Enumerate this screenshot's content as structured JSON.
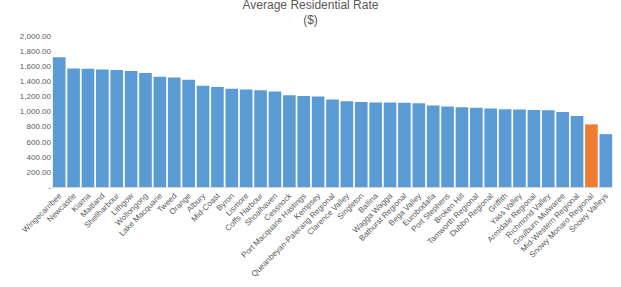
{
  "chart_data": {
    "type": "bar",
    "title": "Average Residential Rate",
    "subtitle": "($)",
    "categories": [
      "Wingecarribee",
      "Newcastle",
      "Kiama",
      "Maitland",
      "Shellharbour",
      "Lithgow",
      "Wollongong",
      "Lake Macquarie",
      "Tweed",
      "Orange",
      "Albury",
      "Mid-Coast",
      "Byron",
      "Lismore",
      "Coffs Harbour",
      "Shoalhaven",
      "Cessnock",
      "Port Macquarie Hastings",
      "Kempsey",
      "Queanbeyan-Palerang Regional",
      "Clarence Valley",
      "Singleton",
      "Ballina",
      "Wagga Wagga",
      "Bathurst Regional",
      "Bega Valley",
      "Eurobodalla",
      "Port Stephens",
      "Broken Hill",
      "Tamworth Regional",
      "Dubbo Regional",
      "Griffith",
      "Yass Valley",
      "Armidale Regional",
      "Richmond Valley",
      "Goulburn Mulwaree",
      "Mid-Western Regional",
      "Snowy Monaro Regional",
      "Snowy Valleys"
    ],
    "values": [
      1720,
      1570,
      1565,
      1555,
      1550,
      1535,
      1510,
      1460,
      1450,
      1420,
      1340,
      1325,
      1300,
      1290,
      1280,
      1265,
      1215,
      1205,
      1200,
      1160,
      1135,
      1125,
      1120,
      1120,
      1115,
      1110,
      1080,
      1065,
      1055,
      1050,
      1040,
      1030,
      1025,
      1020,
      1015,
      995,
      940,
      830,
      700
    ],
    "colors": [
      "#5b9bd5",
      "#5b9bd5",
      "#5b9bd5",
      "#5b9bd5",
      "#5b9bd5",
      "#5b9bd5",
      "#5b9bd5",
      "#5b9bd5",
      "#5b9bd5",
      "#5b9bd5",
      "#5b9bd5",
      "#5b9bd5",
      "#5b9bd5",
      "#5b9bd5",
      "#5b9bd5",
      "#5b9bd5",
      "#5b9bd5",
      "#5b9bd5",
      "#5b9bd5",
      "#5b9bd5",
      "#5b9bd5",
      "#5b9bd5",
      "#5b9bd5",
      "#5b9bd5",
      "#5b9bd5",
      "#5b9bd5",
      "#5b9bd5",
      "#5b9bd5",
      "#5b9bd5",
      "#5b9bd5",
      "#5b9bd5",
      "#5b9bd5",
      "#5b9bd5",
      "#5b9bd5",
      "#5b9bd5",
      "#5b9bd5",
      "#5b9bd5",
      "#ed7d31",
      "#5b9bd5"
    ],
    "ylim": [
      0,
      2000
    ],
    "yticks": [
      {
        "value": 0,
        "label": "-"
      },
      {
        "value": 200,
        "label": "200.00"
      },
      {
        "value": 400,
        "label": "400.00"
      },
      {
        "value": 600,
        "label": "600.00"
      },
      {
        "value": 800,
        "label": "800.00"
      },
      {
        "value": 1000,
        "label": "1,000.00"
      },
      {
        "value": 1200,
        "label": "1,200.00"
      },
      {
        "value": 1400,
        "label": "1,400.00"
      },
      {
        "value": 1600,
        "label": "1,600.00"
      },
      {
        "value": 1800,
        "label": "1,800.00"
      },
      {
        "value": 2000,
        "label": "2,000.00"
      }
    ],
    "grid": false
  }
}
